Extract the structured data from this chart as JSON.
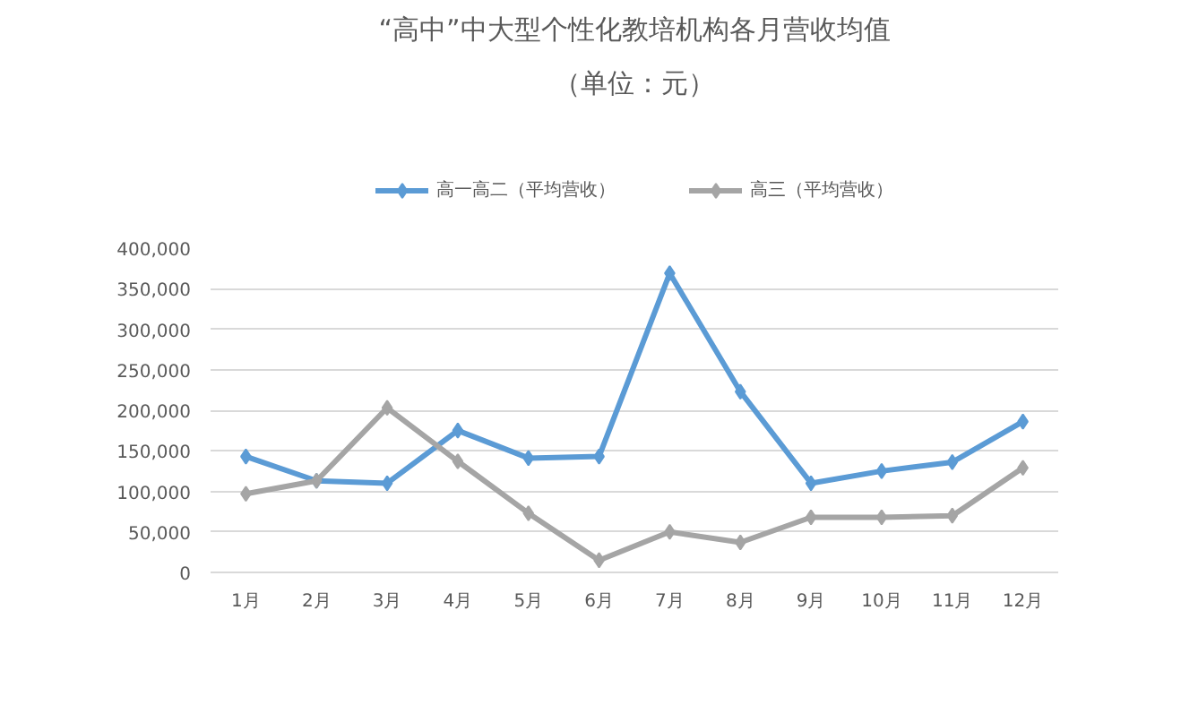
{
  "chart_data": {
    "type": "line",
    "title": "“高中”中大型个性化教培机构各月营收均值",
    "subtitle": "（单位：元）",
    "categories": [
      "1月",
      "2月",
      "3月",
      "4月",
      "5月",
      "6月",
      "7月",
      "8月",
      "9月",
      "10月",
      "11月",
      "12月"
    ],
    "series": [
      {
        "name": "高一高二（平均营收）",
        "color": "#5b9bd5",
        "values": [
          143000,
          113000,
          110000,
          175000,
          141000,
          143000,
          369000,
          223000,
          110000,
          125000,
          136000,
          186000
        ]
      },
      {
        "name": "高三（平均营收）",
        "color": "#a5a5a5",
        "values": [
          97000,
          113000,
          203000,
          137000,
          73000,
          15000,
          50000,
          37000,
          68000,
          68000,
          70000,
          129000
        ]
      }
    ],
    "ylim": [
      0,
      400000
    ],
    "yticks": [
      {
        "value": 0,
        "label": "0"
      },
      {
        "value": 50000,
        "label": "50,000"
      },
      {
        "value": 100000,
        "label": "100,000"
      },
      {
        "value": 150000,
        "label": "150,000"
      },
      {
        "value": 200000,
        "label": "200,000"
      },
      {
        "value": 250000,
        "label": "250,000"
      },
      {
        "value": 300000,
        "label": "300,000"
      },
      {
        "value": 350000,
        "label": "350,000"
      },
      {
        "value": 400000,
        "label": "400,000"
      }
    ],
    "grid": "y",
    "legend": "top",
    "marker": "diamond",
    "line_style": "solid"
  }
}
